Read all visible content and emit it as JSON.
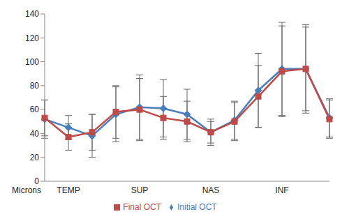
{
  "chart_data": {
    "type": "line",
    "y_label": "Microns",
    "categories": [
      null,
      "TEMP",
      null,
      null,
      "SUP",
      null,
      null,
      "NAS",
      null,
      null,
      "INF",
      null,
      null
    ],
    "series": [
      {
        "name": "Initial OCT",
        "color": "#4a7ebb",
        "marker": "diamond",
        "values": [
          52,
          45,
          38,
          56,
          62,
          61,
          56,
          41,
          51,
          76,
          94,
          94,
          53
        ],
        "errors": [
          16,
          10,
          18,
          23,
          27,
          24,
          21,
          11,
          16,
          31,
          39,
          37,
          16
        ]
      },
      {
        "name": "Final OCT",
        "color": "#be4b48",
        "marker": "square",
        "values": [
          53,
          37,
          41,
          58,
          60,
          53,
          50,
          41,
          50,
          71,
          92,
          94,
          52
        ],
        "errors": [
          15,
          11,
          15,
          22,
          26,
          18,
          17,
          9,
          16,
          26,
          38,
          35,
          16
        ]
      }
    ],
    "ylim": [
      0,
      140
    ],
    "yticks": [
      0,
      20,
      40,
      60,
      80,
      100,
      120,
      140
    ],
    "grid": false,
    "legend": "bottom"
  }
}
